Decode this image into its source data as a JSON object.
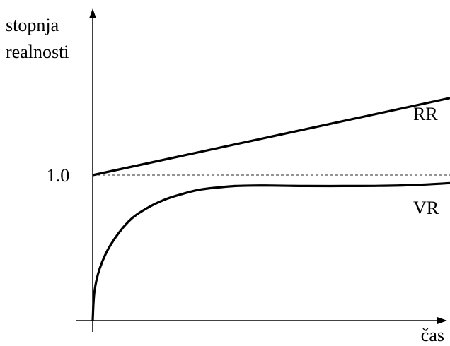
{
  "chart_data": {
    "type": "line",
    "title": "",
    "ylabel_lines": [
      "stopnja",
      "realnosti"
    ],
    "xlabel": "čas",
    "yticks": [
      {
        "value": 1.0,
        "label": "1.0"
      }
    ],
    "reference_line": {
      "y": 1.0,
      "style": "dashed"
    },
    "xlim": [
      0,
      1
    ],
    "ylim": [
      0,
      1.75
    ],
    "series": [
      {
        "name": "RR",
        "x": [
          0,
          1
        ],
        "y": [
          1.0,
          1.53
        ]
      },
      {
        "name": "VR",
        "x": [
          0,
          0.005,
          0.02,
          0.05,
          0.1,
          0.15,
          0.2,
          0.25,
          0.3,
          0.35,
          0.4,
          0.45,
          0.5,
          0.55,
          0.6,
          0.7,
          0.8,
          0.9,
          1.0
        ],
        "y": [
          0,
          0.2,
          0.36,
          0.52,
          0.68,
          0.77,
          0.83,
          0.87,
          0.9,
          0.915,
          0.925,
          0.928,
          0.928,
          0.926,
          0.925,
          0.925,
          0.926,
          0.932,
          0.945
        ]
      }
    ],
    "colors": {
      "line": "#000000",
      "axis": "#000000",
      "reference": "#555555"
    }
  }
}
